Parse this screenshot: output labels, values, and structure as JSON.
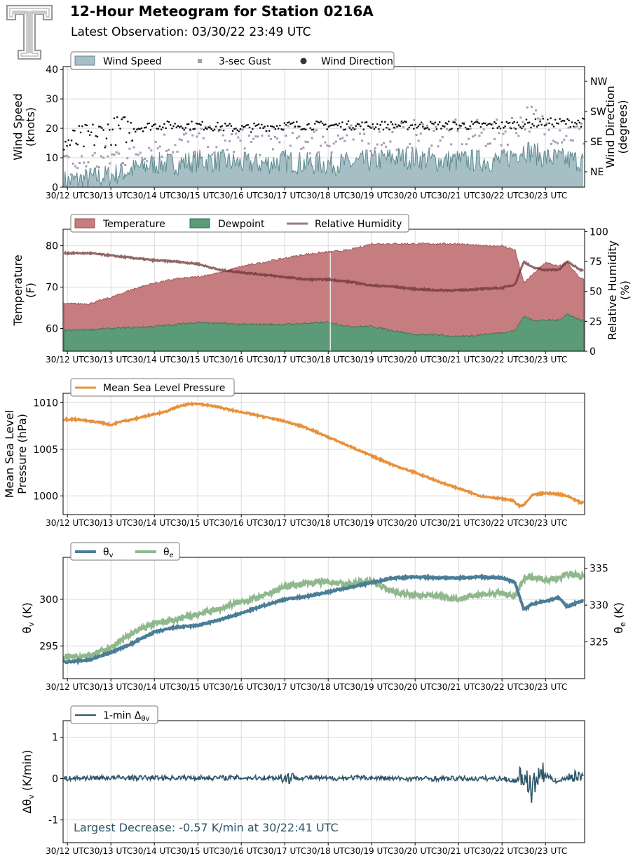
{
  "header": {
    "title": "12-Hour Meteogram for Station 0216A",
    "subtitle": "Latest Observation: 03/30/22 23:49 UTC"
  },
  "annotation": "Largest Decrease: -0.57 K/min at 30/22:41 UTC",
  "colors": {
    "wind_fill": "#a6bfc5",
    "wind_line": "#5f8a91",
    "gust": "#a89cb4",
    "direction": "#111111",
    "temperature_fill": "#c67d80",
    "temperature_line": "#9a4e51",
    "dewpoint_fill": "#5b9b77",
    "dewpoint_line": "#3d6b50",
    "rh": "#6d3436",
    "rh_legend": "#9a7a7c",
    "pressure": "#e8913a",
    "theta_v": "#4a7d96",
    "theta_e": "#90b88e",
    "dtheta": "#2e5569",
    "annotation": "#2e5569",
    "grid": "#d8d8d8"
  },
  "x_ticks": [
    "30/12 UTC",
    "30/13 UTC",
    "30/14 UTC",
    "30/15 UTC",
    "30/16 UTC",
    "30/17 UTC",
    "30/18 UTC",
    "30/19 UTC",
    "30/20 UTC",
    "30/21 UTC",
    "30/22 UTC",
    "30/23 UTC"
  ],
  "chart_data": [
    {
      "type": "area",
      "panel": "wind",
      "ylabel": "Wind Speed\n(knots)",
      "ylabel2": "Wind Direction\n(degrees)",
      "ylim": [
        0,
        41
      ],
      "yticks": [
        0,
        10,
        20,
        30,
        40
      ],
      "y2_ticks": [
        "NE",
        "SE",
        "SW",
        "NW"
      ],
      "legend": [
        "Wind Speed",
        "3-sec Gust",
        "Wind Direction"
      ],
      "series": [
        {
          "name": "Wind Speed",
          "hours": [
            12,
            12.5,
            13,
            13.5,
            14,
            14.5,
            15,
            15.5,
            16,
            16.5,
            17,
            17.5,
            18,
            18.5,
            19,
            19.5,
            20,
            20.5,
            21,
            21.5,
            22,
            22.5,
            23,
            23.8
          ],
          "values": [
            2,
            3,
            4,
            6,
            8,
            8,
            9,
            9,
            8,
            8,
            9,
            8,
            8,
            8,
            9,
            10,
            10,
            9,
            9,
            9,
            9,
            13,
            10,
            9
          ]
        },
        {
          "name": "3-sec Gust",
          "hours": [
            12,
            13,
            14,
            15,
            16,
            17,
            18,
            19,
            20,
            21,
            22,
            22.6,
            23,
            23.8
          ],
          "values": [
            7,
            10,
            14,
            16,
            15,
            16,
            16,
            17,
            18,
            18,
            18,
            24,
            20,
            18
          ]
        },
        {
          "name": "Wind Direction",
          "hours": [
            12,
            12.5,
            13,
            13.5,
            14,
            15,
            16,
            17,
            18,
            19,
            20,
            21,
            22,
            23,
            23.8
          ],
          "values": [
            15,
            17,
            19,
            20,
            21,
            21,
            20,
            21,
            21,
            21,
            21,
            21,
            21,
            22,
            22
          ]
        }
      ]
    },
    {
      "type": "area",
      "panel": "temperature",
      "ylabel": "Temperature\n(F)",
      "ylabel2": "Relative Humidity\n(%)",
      "ylim": [
        54.5,
        84
      ],
      "yticks": [
        60,
        70,
        80
      ],
      "y2lim": [
        0,
        102
      ],
      "y2_ticks": [
        0,
        25,
        50,
        75,
        100
      ],
      "legend": [
        "Temperature",
        "Dewpoint",
        "Relative Humidity"
      ],
      "series": [
        {
          "name": "Temperature",
          "hours": [
            12,
            12.5,
            13,
            13.5,
            14,
            14.5,
            15,
            15.5,
            16,
            16.5,
            17,
            17.5,
            18,
            18.5,
            19,
            19.5,
            20,
            20.5,
            21,
            21.5,
            22,
            22.3,
            22.5,
            22.7,
            23,
            23.3,
            23.5,
            23.8
          ],
          "values": [
            66,
            66,
            67.5,
            69.5,
            71,
            72,
            72.5,
            73.5,
            75,
            76,
            77,
            78,
            78.5,
            79,
            80.5,
            80.5,
            80.5,
            80.5,
            80.5,
            80,
            80,
            79,
            71,
            73,
            76,
            75,
            76,
            72
          ]
        },
        {
          "name": "Dewpoint",
          "hours": [
            12,
            13,
            14,
            15,
            16,
            17,
            18,
            18.5,
            19,
            19.5,
            20,
            20.5,
            21,
            21.5,
            22,
            22.3,
            22.5,
            22.7,
            23,
            23.3,
            23.5,
            23.8
          ],
          "values": [
            59.5,
            60,
            60.5,
            61.5,
            61,
            61,
            61.5,
            60.5,
            60.5,
            59.5,
            58.5,
            58.5,
            58,
            58.5,
            59,
            59.5,
            63,
            62,
            62,
            62,
            63.5,
            62
          ]
        },
        {
          "name": "Relative Humidity",
          "hours": [
            12,
            12.5,
            13,
            13.5,
            14,
            14.5,
            15,
            15.5,
            16,
            16.5,
            17,
            17.5,
            18,
            18.5,
            19,
            19.5,
            20,
            20.5,
            21,
            21.5,
            22,
            22.3,
            22.5,
            22.7,
            23,
            23.3,
            23.5,
            23.8
          ],
          "values": [
            82,
            82,
            80,
            78,
            76,
            75,
            73,
            68,
            66,
            64,
            62,
            60,
            60,
            58,
            55,
            54,
            52,
            51,
            51,
            52,
            53,
            56,
            75,
            70,
            68,
            68,
            75,
            68
          ]
        }
      ]
    },
    {
      "type": "line",
      "panel": "pressure",
      "ylabel": "Mean Sea Level\nPressure (hPa)",
      "ylim": [
        998,
        1011
      ],
      "yticks": [
        1000,
        1005,
        1010
      ],
      "legend": [
        "Mean Sea Level Pressure"
      ],
      "series": [
        {
          "name": "Mean Sea Level Pressure",
          "hours": [
            12,
            12.25,
            12.5,
            12.75,
            13,
            13.25,
            13.5,
            13.75,
            14,
            14.25,
            14.5,
            14.75,
            15,
            15.25,
            15.5,
            15.75,
            16,
            16.5,
            17,
            17.5,
            18,
            18.5,
            19,
            19.5,
            20,
            20.5,
            21,
            21.5,
            22,
            22.25,
            22.4,
            22.5,
            22.7,
            23,
            23.3,
            23.5,
            23.8
          ],
          "values": [
            1008.2,
            1008.2,
            1008.0,
            1007.9,
            1007.6,
            1008.0,
            1008.2,
            1008.5,
            1008.8,
            1009.0,
            1009.5,
            1009.8,
            1009.9,
            1009.7,
            1009.5,
            1009.2,
            1009.0,
            1008.5,
            1008.0,
            1007.3,
            1006.3,
            1005.3,
            1004.3,
            1003.3,
            1002.5,
            1001.6,
            1000.8,
            1000.0,
            999.7,
            999.5,
            998.9,
            999.0,
            1000.1,
            1000.3,
            1000.2,
            1000.0,
            999.3
          ]
        }
      ]
    },
    {
      "type": "line",
      "panel": "theta",
      "ylabel": "θv (K)",
      "ylabel2": "θe (K)",
      "ylim": [
        291.5,
        304.5
      ],
      "yticks": [
        295,
        300
      ],
      "y2lim": [
        320,
        336.5
      ],
      "y2_ticks": [
        325,
        330,
        335
      ],
      "legend": [
        "θv",
        "θe"
      ],
      "series": [
        {
          "name": "θv",
          "hours": [
            12,
            12.5,
            13,
            13.5,
            14,
            14.5,
            15,
            15.5,
            16,
            16.5,
            17,
            17.5,
            18,
            18.5,
            19,
            19.5,
            20,
            20.5,
            21,
            21.5,
            22,
            22.3,
            22.5,
            22.7,
            23,
            23.3,
            23.5,
            23.8
          ],
          "values": [
            293.3,
            293.5,
            294.3,
            295.3,
            296.5,
            297.0,
            297.2,
            297.8,
            298.5,
            299.3,
            300.0,
            300.3,
            300.8,
            301.3,
            301.8,
            302.3,
            302.4,
            302.3,
            302.3,
            302.4,
            302.3,
            301.8,
            298.9,
            299.5,
            299.8,
            300.2,
            299.2,
            299.8
          ]
        },
        {
          "name": "θe",
          "hours": [
            12,
            12.5,
            13,
            13.5,
            14,
            14.5,
            15,
            15.5,
            16,
            16.5,
            17,
            17.5,
            18,
            18.5,
            19,
            19.5,
            20,
            20.5,
            21,
            21.5,
            22,
            22.3,
            22.5,
            22.7,
            23,
            23.3,
            23.5,
            23.8
          ],
          "values": [
            323.0,
            323.2,
            324.2,
            326.2,
            327.5,
            328.0,
            328.8,
            329.5,
            330.5,
            331.2,
            332.5,
            333.0,
            333.2,
            332.8,
            333.3,
            331.8,
            331.3,
            331.3,
            330.8,
            331.5,
            331.6,
            331.2,
            333.5,
            333.8,
            333.5,
            333.6,
            334.3,
            333.9
          ]
        }
      ]
    },
    {
      "type": "line",
      "panel": "delta",
      "ylabel": "Δθv (K/min)",
      "ylim": [
        -1.55,
        1.4
      ],
      "yticks": [
        -1,
        0,
        1
      ],
      "legend": [
        "1-min Δθv"
      ],
      "series": [
        {
          "name": "1-min Δθv",
          "hours": [
            12,
            12.5,
            13,
            13.5,
            14,
            14.5,
            15,
            15.5,
            16,
            16.5,
            17,
            17.5,
            18,
            18.5,
            19,
            19.5,
            20,
            20.5,
            21,
            21.5,
            22,
            22.3,
            22.5,
            22.68,
            22.9,
            23,
            23.3,
            23.5,
            23.8
          ],
          "values": [
            0,
            0.05,
            0.05,
            0.05,
            0.05,
            0.05,
            0.05,
            0.05,
            0.05,
            0.05,
            0.05,
            0.05,
            0,
            0.05,
            0.05,
            0,
            0,
            0,
            0,
            0,
            0,
            -0.15,
            0.2,
            -0.57,
            0.35,
            0.2,
            -0.2,
            0.1,
            0.15
          ]
        }
      ]
    }
  ]
}
